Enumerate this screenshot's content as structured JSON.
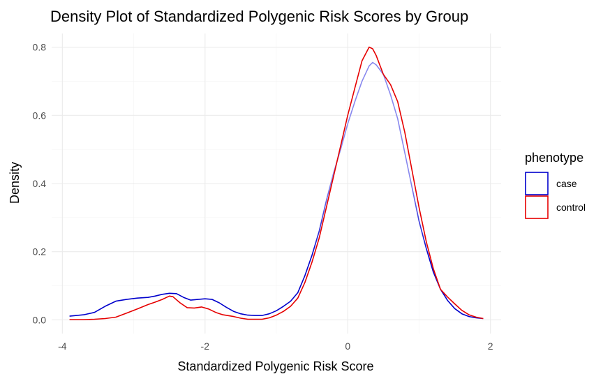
{
  "chart_data": {
    "type": "line",
    "title": "Density Plot of Standardized Polygenic Risk Scores by Group",
    "xlabel": "Standardized Polygenic Risk Score",
    "ylabel": "Density",
    "xlim": [
      -4.15,
      2.15
    ],
    "ylim": [
      -0.04,
      0.84
    ],
    "x_ticks": [
      -4,
      -2,
      0,
      2
    ],
    "x_tick_labels": [
      "-4",
      "-2",
      "0",
      "2"
    ],
    "y_ticks": [
      0.0,
      0.2,
      0.4,
      0.6,
      0.8
    ],
    "y_tick_labels": [
      "0.0",
      "0.2",
      "0.4",
      "0.6",
      "0.8"
    ],
    "grid": true,
    "legend": {
      "title": "phenotype",
      "placement": "right",
      "entries": [
        "case",
        "control"
      ]
    },
    "series": [
      {
        "name": "case",
        "color": "#0000cc",
        "high_color": "#8888ee",
        "points": [
          [
            -3.9,
            0.011
          ],
          [
            -3.7,
            0.015
          ],
          [
            -3.55,
            0.022
          ],
          [
            -3.4,
            0.04
          ],
          [
            -3.25,
            0.055
          ],
          [
            -3.1,
            0.06
          ],
          [
            -2.95,
            0.064
          ],
          [
            -2.8,
            0.066
          ],
          [
            -2.7,
            0.07
          ],
          [
            -2.6,
            0.075
          ],
          [
            -2.5,
            0.078
          ],
          [
            -2.4,
            0.077
          ],
          [
            -2.3,
            0.066
          ],
          [
            -2.2,
            0.058
          ],
          [
            -2.1,
            0.06
          ],
          [
            -2.0,
            0.062
          ],
          [
            -1.9,
            0.06
          ],
          [
            -1.8,
            0.05
          ],
          [
            -1.7,
            0.037
          ],
          [
            -1.6,
            0.025
          ],
          [
            -1.5,
            0.018
          ],
          [
            -1.4,
            0.014
          ],
          [
            -1.3,
            0.013
          ],
          [
            -1.2,
            0.013
          ],
          [
            -1.1,
            0.018
          ],
          [
            -1.0,
            0.027
          ],
          [
            -0.9,
            0.04
          ],
          [
            -0.8,
            0.055
          ],
          [
            -0.7,
            0.08
          ],
          [
            -0.6,
            0.13
          ],
          [
            -0.5,
            0.19
          ],
          [
            -0.4,
            0.26
          ],
          [
            -0.3,
            0.35
          ],
          [
            -0.2,
            0.43
          ],
          [
            -0.1,
            0.5
          ],
          [
            0.0,
            0.575
          ],
          [
            0.1,
            0.64
          ],
          [
            0.2,
            0.7
          ],
          [
            0.3,
            0.745
          ],
          [
            0.35,
            0.755
          ],
          [
            0.4,
            0.748
          ],
          [
            0.5,
            0.72
          ],
          [
            0.6,
            0.66
          ],
          [
            0.7,
            0.59
          ],
          [
            0.8,
            0.49
          ],
          [
            0.9,
            0.39
          ],
          [
            1.0,
            0.29
          ],
          [
            1.1,
            0.21
          ],
          [
            1.2,
            0.14
          ],
          [
            1.3,
            0.09
          ],
          [
            1.4,
            0.057
          ],
          [
            1.5,
            0.033
          ],
          [
            1.6,
            0.018
          ],
          [
            1.7,
            0.01
          ],
          [
            1.8,
            0.006
          ],
          [
            1.9,
            0.004
          ]
        ]
      },
      {
        "name": "control",
        "color": "#e60000",
        "points": [
          [
            -3.9,
            0.001
          ],
          [
            -3.7,
            0.001
          ],
          [
            -3.55,
            0.002
          ],
          [
            -3.4,
            0.004
          ],
          [
            -3.25,
            0.008
          ],
          [
            -3.1,
            0.02
          ],
          [
            -2.95,
            0.032
          ],
          [
            -2.8,
            0.045
          ],
          [
            -2.7,
            0.052
          ],
          [
            -2.6,
            0.06
          ],
          [
            -2.5,
            0.07
          ],
          [
            -2.45,
            0.068
          ],
          [
            -2.35,
            0.05
          ],
          [
            -2.25,
            0.036
          ],
          [
            -2.15,
            0.035
          ],
          [
            -2.05,
            0.038
          ],
          [
            -1.95,
            0.032
          ],
          [
            -1.85,
            0.022
          ],
          [
            -1.75,
            0.015
          ],
          [
            -1.6,
            0.01
          ],
          [
            -1.5,
            0.005
          ],
          [
            -1.4,
            0.002
          ],
          [
            -1.3,
            0.002
          ],
          [
            -1.2,
            0.002
          ],
          [
            -1.1,
            0.006
          ],
          [
            -1.0,
            0.014
          ],
          [
            -0.9,
            0.025
          ],
          [
            -0.8,
            0.04
          ],
          [
            -0.7,
            0.064
          ],
          [
            -0.6,
            0.11
          ],
          [
            -0.5,
            0.17
          ],
          [
            -0.4,
            0.24
          ],
          [
            -0.3,
            0.33
          ],
          [
            -0.2,
            0.42
          ],
          [
            -0.1,
            0.51
          ],
          [
            0.0,
            0.6
          ],
          [
            0.1,
            0.68
          ],
          [
            0.2,
            0.76
          ],
          [
            0.3,
            0.8
          ],
          [
            0.35,
            0.795
          ],
          [
            0.4,
            0.775
          ],
          [
            0.5,
            0.72
          ],
          [
            0.6,
            0.69
          ],
          [
            0.7,
            0.64
          ],
          [
            0.8,
            0.55
          ],
          [
            0.9,
            0.44
          ],
          [
            1.0,
            0.33
          ],
          [
            1.1,
            0.23
          ],
          [
            1.2,
            0.15
          ],
          [
            1.3,
            0.09
          ],
          [
            1.4,
            0.067
          ],
          [
            1.5,
            0.047
          ],
          [
            1.6,
            0.028
          ],
          [
            1.7,
            0.015
          ],
          [
            1.8,
            0.008
          ],
          [
            1.9,
            0.004
          ]
        ]
      }
    ]
  }
}
